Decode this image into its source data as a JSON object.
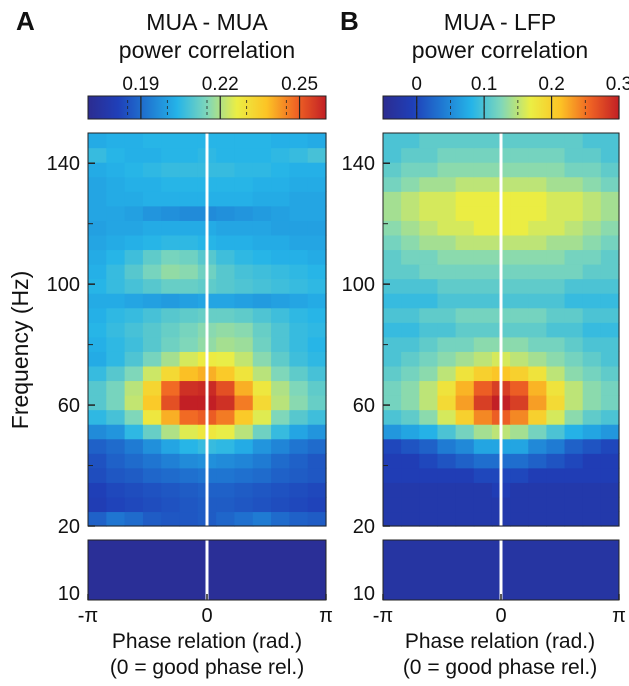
{
  "chart_data": [
    {
      "type": "heatmap",
      "panel_label": "A",
      "title": "MUA - MUA",
      "subtitle": "power correlation",
      "colorbar": {
        "range": [
          0.17,
          0.26
        ],
        "ticks": [
          0.19,
          0.22,
          0.25
        ],
        "tick_labels": [
          "0.19",
          "0.22",
          "0.25"
        ]
      },
      "ylabel": "Frequency (Hz)",
      "xlabel": "Phase relation (rad.)",
      "xlabel2": "(0 = good phase rel.)",
      "x_ticks": [
        -3.1416,
        0,
        3.1416
      ],
      "x_tick_labels": [
        "-π",
        "0",
        "π"
      ],
      "y_ticks_upper": [
        20,
        60,
        100,
        140
      ],
      "y_tick_labels_upper": [
        "20",
        "60",
        "100",
        "140"
      ],
      "y_ticks_lower": [
        10
      ],
      "y_tick_labels_lower": [
        "10"
      ],
      "xlim": [
        -3.1416,
        3.1416
      ],
      "ylim_upper": [
        20,
        150
      ],
      "ylim_lower": [
        10,
        17
      ],
      "marker_x": 0,
      "frequency": [
        20,
        25,
        30,
        35,
        40,
        45,
        50,
        55,
        60,
        65,
        70,
        75,
        80,
        85,
        90,
        95,
        100,
        105,
        110,
        115,
        120,
        125,
        130,
        135,
        140,
        145,
        150
      ],
      "phase": [
        -3.1416,
        -2.618,
        -2.0944,
        -1.5708,
        -1.0472,
        -0.5236,
        0,
        0.5236,
        1.0472,
        1.5708,
        2.0944,
        2.618,
        3.1416
      ],
      "values": [
        [
          0.188,
          0.192,
          0.19,
          0.187,
          0.186,
          0.186,
          0.187,
          0.189,
          0.191,
          0.193,
          0.19,
          0.188,
          0.187
        ],
        [
          0.18,
          0.182,
          0.183,
          0.184,
          0.185,
          0.186,
          0.187,
          0.187,
          0.186,
          0.185,
          0.184,
          0.183,
          0.182
        ],
        [
          0.181,
          0.183,
          0.184,
          0.185,
          0.186,
          0.187,
          0.188,
          0.188,
          0.187,
          0.186,
          0.185,
          0.184,
          0.183
        ],
        [
          0.184,
          0.186,
          0.187,
          0.189,
          0.19,
          0.191,
          0.192,
          0.192,
          0.191,
          0.19,
          0.188,
          0.187,
          0.186
        ],
        [
          0.185,
          0.188,
          0.19,
          0.192,
          0.194,
          0.196,
          0.197,
          0.196,
          0.195,
          0.193,
          0.19,
          0.188,
          0.186
        ],
        [
          0.188,
          0.19,
          0.193,
          0.197,
          0.201,
          0.204,
          0.206,
          0.205,
          0.202,
          0.198,
          0.195,
          0.192,
          0.19
        ],
        [
          0.196,
          0.198,
          0.205,
          0.212,
          0.22,
          0.225,
          0.228,
          0.226,
          0.221,
          0.213,
          0.206,
          0.201,
          0.198
        ],
        [
          0.205,
          0.208,
          0.215,
          0.228,
          0.24,
          0.248,
          0.25,
          0.246,
          0.236,
          0.225,
          0.215,
          0.21,
          0.207
        ],
        [
          0.21,
          0.214,
          0.222,
          0.236,
          0.252,
          0.26,
          0.262,
          0.257,
          0.246,
          0.232,
          0.221,
          0.216,
          0.212
        ],
        [
          0.21,
          0.214,
          0.221,
          0.233,
          0.248,
          0.257,
          0.258,
          0.252,
          0.24,
          0.228,
          0.22,
          0.215,
          0.211
        ],
        [
          0.206,
          0.21,
          0.215,
          0.223,
          0.232,
          0.238,
          0.24,
          0.236,
          0.229,
          0.221,
          0.215,
          0.211,
          0.208
        ],
        [
          0.202,
          0.205,
          0.209,
          0.214,
          0.219,
          0.224,
          0.227,
          0.226,
          0.222,
          0.216,
          0.211,
          0.207,
          0.205
        ],
        [
          0.203,
          0.205,
          0.207,
          0.21,
          0.213,
          0.215,
          0.217,
          0.219,
          0.218,
          0.213,
          0.209,
          0.206,
          0.204
        ],
        [
          0.204,
          0.206,
          0.208,
          0.21,
          0.212,
          0.214,
          0.216,
          0.217,
          0.216,
          0.212,
          0.209,
          0.206,
          0.205
        ],
        [
          0.203,
          0.205,
          0.206,
          0.208,
          0.21,
          0.211,
          0.212,
          0.212,
          0.211,
          0.209,
          0.207,
          0.205,
          0.204
        ],
        [
          0.202,
          0.202,
          0.201,
          0.2,
          0.199,
          0.2,
          0.201,
          0.201,
          0.2,
          0.199,
          0.2,
          0.201,
          0.202
        ],
        [
          0.204,
          0.206,
          0.208,
          0.21,
          0.212,
          0.212,
          0.211,
          0.21,
          0.209,
          0.208,
          0.207,
          0.206,
          0.205
        ],
        [
          0.203,
          0.206,
          0.21,
          0.214,
          0.217,
          0.216,
          0.213,
          0.21,
          0.208,
          0.207,
          0.206,
          0.205,
          0.204
        ],
        [
          0.202,
          0.204,
          0.207,
          0.211,
          0.214,
          0.213,
          0.21,
          0.207,
          0.205,
          0.204,
          0.203,
          0.203,
          0.202
        ],
        [
          0.201,
          0.202,
          0.203,
          0.204,
          0.205,
          0.205,
          0.204,
          0.203,
          0.203,
          0.202,
          0.202,
          0.201,
          0.201
        ],
        [
          0.2,
          0.201,
          0.201,
          0.202,
          0.202,
          0.202,
          0.202,
          0.201,
          0.201,
          0.201,
          0.2,
          0.2,
          0.2
        ],
        [
          0.201,
          0.201,
          0.2,
          0.198,
          0.197,
          0.196,
          0.196,
          0.197,
          0.198,
          0.199,
          0.2,
          0.201,
          0.201
        ],
        [
          0.201,
          0.202,
          0.202,
          0.203,
          0.203,
          0.203,
          0.203,
          0.203,
          0.203,
          0.202,
          0.202,
          0.201,
          0.201
        ],
        [
          0.201,
          0.202,
          0.203,
          0.203,
          0.204,
          0.204,
          0.204,
          0.204,
          0.204,
          0.203,
          0.203,
          0.202,
          0.202
        ],
        [
          0.202,
          0.203,
          0.204,
          0.205,
          0.206,
          0.206,
          0.206,
          0.206,
          0.205,
          0.205,
          0.204,
          0.203,
          0.203
        ],
        [
          0.206,
          0.204,
          0.203,
          0.203,
          0.204,
          0.204,
          0.205,
          0.204,
          0.204,
          0.204,
          0.205,
          0.206,
          0.208
        ],
        [
          0.202,
          0.203,
          0.203,
          0.204,
          0.204,
          0.204,
          0.204,
          0.204,
          0.204,
          0.204,
          0.203,
          0.203,
          0.202
        ]
      ],
      "lower_band_value": 0.172
    },
    {
      "type": "heatmap",
      "panel_label": "B",
      "title": "MUA - LFP",
      "subtitle": "power correlation",
      "colorbar": {
        "range": [
          -0.05,
          0.3
        ],
        "ticks": [
          0,
          0.1,
          0.2,
          0.3
        ],
        "tick_labels": [
          "0",
          "0.1",
          "0.2",
          "0.3"
        ]
      },
      "xlabel": "Phase relation (rad.)",
      "xlabel2": "(0 = good phase rel.)",
      "x_ticks": [
        -3.1416,
        0,
        3.1416
      ],
      "x_tick_labels": [
        "-π",
        "0",
        "π"
      ],
      "y_ticks_upper": [
        20,
        60,
        100,
        140
      ],
      "y_tick_labels_upper": [
        "20",
        "60",
        "100",
        "140"
      ],
      "y_ticks_lower": [
        10
      ],
      "y_tick_labels_lower": [
        "10"
      ],
      "xlim": [
        -3.1416,
        3.1416
      ],
      "ylim_upper": [
        20,
        150
      ],
      "ylim_lower": [
        10,
        17
      ],
      "marker_x": 0,
      "frequency": [
        20,
        25,
        30,
        35,
        40,
        45,
        50,
        55,
        60,
        65,
        70,
        75,
        80,
        85,
        90,
        95,
        100,
        105,
        110,
        115,
        120,
        125,
        130,
        135,
        140,
        145,
        150
      ],
      "phase": [
        -3.1416,
        -2.618,
        -2.0944,
        -1.5708,
        -1.0472,
        -0.5236,
        0,
        0.5236,
        1.0472,
        1.5708,
        2.0944,
        2.618,
        3.1416
      ],
      "values": [
        [
          -0.02,
          -0.02,
          -0.02,
          -0.02,
          -0.02,
          -0.02,
          -0.02,
          -0.02,
          -0.02,
          -0.02,
          -0.02,
          -0.02,
          -0.02
        ],
        [
          -0.02,
          -0.02,
          -0.02,
          -0.02,
          -0.02,
          -0.02,
          -0.02,
          -0.02,
          -0.02,
          -0.02,
          -0.02,
          -0.02,
          -0.02
        ],
        [
          -0.02,
          -0.02,
          -0.02,
          -0.02,
          -0.02,
          -0.02,
          -0.01,
          -0.02,
          -0.02,
          -0.02,
          -0.02,
          -0.02,
          -0.02
        ],
        [
          -0.01,
          -0.01,
          -0.01,
          -0.01,
          -0.01,
          0.0,
          0.0,
          0.0,
          -0.01,
          -0.01,
          -0.01,
          -0.01,
          -0.01
        ],
        [
          -0.01,
          -0.01,
          0.0,
          0.01,
          0.02,
          0.03,
          0.03,
          0.03,
          0.02,
          0.01,
          0.0,
          -0.01,
          -0.01
        ],
        [
          0.0,
          0.01,
          0.02,
          0.04,
          0.05,
          0.07,
          0.07,
          0.07,
          0.05,
          0.04,
          0.02,
          0.01,
          0.0
        ],
        [
          0.06,
          0.07,
          0.08,
          0.1,
          0.12,
          0.14,
          0.15,
          0.14,
          0.12,
          0.1,
          0.08,
          0.07,
          0.06
        ],
        [
          0.1,
          0.11,
          0.13,
          0.16,
          0.2,
          0.24,
          0.26,
          0.24,
          0.2,
          0.16,
          0.13,
          0.11,
          0.1
        ],
        [
          0.12,
          0.13,
          0.15,
          0.19,
          0.23,
          0.28,
          0.3,
          0.28,
          0.23,
          0.19,
          0.15,
          0.13,
          0.12
        ],
        [
          0.12,
          0.13,
          0.15,
          0.18,
          0.22,
          0.26,
          0.28,
          0.26,
          0.22,
          0.18,
          0.15,
          0.13,
          0.12
        ],
        [
          0.11,
          0.12,
          0.13,
          0.15,
          0.18,
          0.2,
          0.21,
          0.2,
          0.18,
          0.15,
          0.13,
          0.12,
          0.11
        ],
        [
          0.1,
          0.11,
          0.12,
          0.13,
          0.14,
          0.15,
          0.16,
          0.15,
          0.14,
          0.13,
          0.12,
          0.11,
          0.1
        ],
        [
          0.1,
          0.1,
          0.11,
          0.12,
          0.12,
          0.13,
          0.13,
          0.13,
          0.12,
          0.12,
          0.11,
          0.1,
          0.1
        ],
        [
          0.09,
          0.09,
          0.1,
          0.1,
          0.11,
          0.11,
          0.11,
          0.11,
          0.11,
          0.1,
          0.1,
          0.09,
          0.09
        ],
        [
          0.1,
          0.1,
          0.11,
          0.11,
          0.12,
          0.12,
          0.12,
          0.12,
          0.12,
          0.11,
          0.11,
          0.1,
          0.1
        ],
        [
          0.09,
          0.09,
          0.09,
          0.1,
          0.1,
          0.1,
          0.1,
          0.1,
          0.1,
          0.1,
          0.09,
          0.09,
          0.09
        ],
        [
          0.1,
          0.1,
          0.1,
          0.11,
          0.11,
          0.11,
          0.11,
          0.11,
          0.11,
          0.11,
          0.1,
          0.1,
          0.1
        ],
        [
          0.11,
          0.11,
          0.12,
          0.12,
          0.12,
          0.12,
          0.12,
          0.12,
          0.12,
          0.12,
          0.12,
          0.11,
          0.11
        ],
        [
          0.11,
          0.12,
          0.12,
          0.13,
          0.13,
          0.13,
          0.13,
          0.13,
          0.13,
          0.13,
          0.12,
          0.12,
          0.11
        ],
        [
          0.12,
          0.13,
          0.14,
          0.14,
          0.15,
          0.15,
          0.15,
          0.15,
          0.15,
          0.14,
          0.14,
          0.13,
          0.12
        ],
        [
          0.13,
          0.14,
          0.15,
          0.16,
          0.16,
          0.17,
          0.17,
          0.17,
          0.16,
          0.16,
          0.15,
          0.14,
          0.13
        ],
        [
          0.14,
          0.15,
          0.16,
          0.16,
          0.17,
          0.17,
          0.17,
          0.17,
          0.17,
          0.16,
          0.16,
          0.15,
          0.14
        ],
        [
          0.14,
          0.15,
          0.16,
          0.16,
          0.17,
          0.17,
          0.17,
          0.17,
          0.17,
          0.16,
          0.16,
          0.15,
          0.14
        ],
        [
          0.12,
          0.13,
          0.14,
          0.14,
          0.15,
          0.15,
          0.15,
          0.15,
          0.15,
          0.14,
          0.14,
          0.13,
          0.12
        ],
        [
          0.11,
          0.12,
          0.12,
          0.13,
          0.13,
          0.13,
          0.13,
          0.13,
          0.13,
          0.13,
          0.12,
          0.12,
          0.11
        ],
        [
          0.1,
          0.11,
          0.11,
          0.12,
          0.12,
          0.12,
          0.12,
          0.12,
          0.12,
          0.12,
          0.11,
          0.11,
          0.1
        ],
        [
          0.1,
          0.1,
          0.11,
          0.11,
          0.11,
          0.11,
          0.11,
          0.11,
          0.11,
          0.11,
          0.11,
          0.1,
          0.1
        ]
      ],
      "lower_band_value": -0.03
    }
  ],
  "colors": {
    "marker_line": "#ffffff",
    "text": "#111111"
  }
}
